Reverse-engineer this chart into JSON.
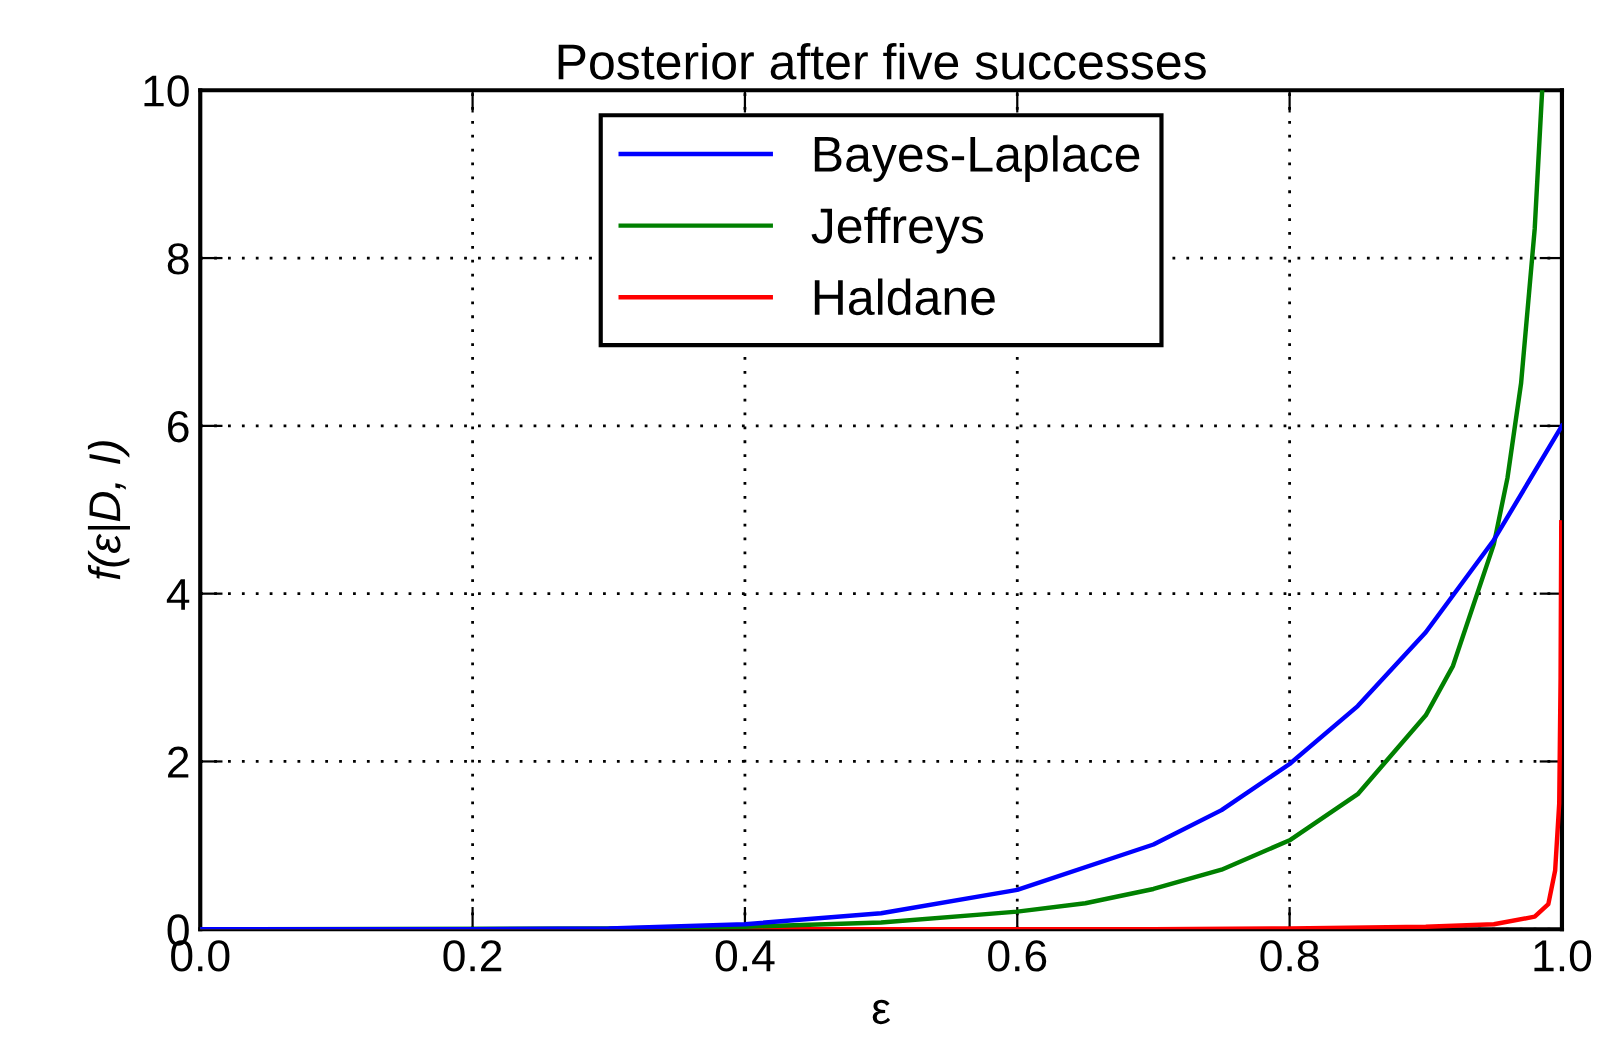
{
  "chart_data": {
    "type": "line",
    "title": "Posterior after five successes",
    "xlabel": "ε",
    "ylabel": "f(ε|D, I)",
    "xlim": [
      0.0,
      1.0
    ],
    "ylim": [
      0,
      10
    ],
    "xticks": [
      {
        "value": 0,
        "label": "0.0"
      },
      0.2,
      0.4,
      0.6,
      0.8,
      {
        "value": 1,
        "label": "1.0"
      }
    ],
    "yticks": [
      0,
      2,
      4,
      6,
      8,
      10
    ],
    "grid": true,
    "legend": "top",
    "line_style": "solid",
    "marker": "none",
    "series": [
      {
        "name": "Bayes-Laplace",
        "color": "#0000ff",
        "x": [
          0,
          0.1,
          0.2,
          0.3,
          0.4,
          0.5,
          0.6,
          0.7,
          0.75,
          0.8,
          0.85,
          0.9,
          0.95,
          1.0
        ],
        "values": [
          0,
          0,
          0,
          0.01,
          0.06,
          0.19,
          0.47,
          1.01,
          1.42,
          1.97,
          2.66,
          3.54,
          4.64,
          6.0
        ]
      },
      {
        "name": "Jeffreys",
        "color": "#008000",
        "x": [
          0,
          0.3,
          0.4,
          0.5,
          0.6,
          0.65,
          0.7,
          0.75,
          0.8,
          0.85,
          0.9,
          0.92,
          0.95,
          0.96,
          0.97,
          0.98,
          0.985,
          0.9855
        ],
        "values": [
          0,
          0.01,
          0.03,
          0.08,
          0.21,
          0.31,
          0.48,
          0.71,
          1.06,
          1.61,
          2.55,
          3.14,
          4.59,
          5.38,
          6.51,
          8.35,
          9.86,
          10.0
        ]
      },
      {
        "name": "Haldane",
        "color": "#ff0000",
        "x": [
          0,
          0.7,
          0.8,
          0.9,
          0.95,
          0.98,
          0.99,
          0.995,
          0.998,
          0.999,
          0.9995
        ],
        "values": [
          0,
          0,
          0.01,
          0.03,
          0.06,
          0.15,
          0.3,
          0.7,
          1.5,
          3.0,
          4.85
        ]
      }
    ]
  }
}
